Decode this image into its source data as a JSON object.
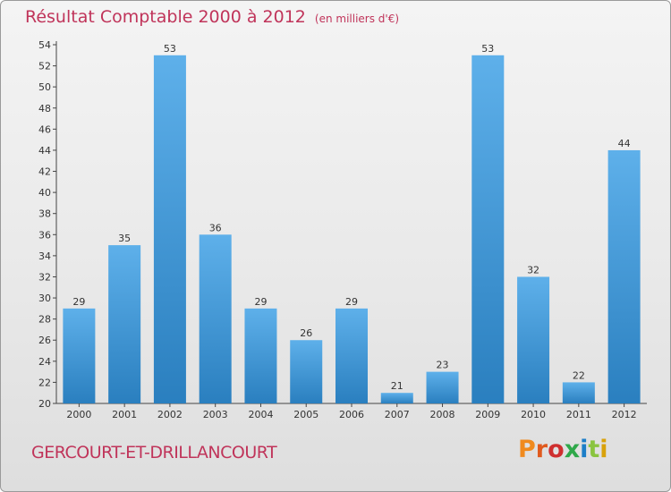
{
  "title": "Résultat Comptable 2000 à 2012",
  "unit": "(en milliers d'€)",
  "commune": "GERCOURT-ET-DRILLANCOURT",
  "logo_text": "Proxiti",
  "colors": {
    "title": "#c0345a",
    "bar_light": "#5eb0ea",
    "bar_dark": "#2a7fbf",
    "logo": [
      "#f08a1e",
      "#e05a1e",
      "#cf2f2f",
      "#2fa84a",
      "#1c7ec8",
      "#8ac43f",
      "#d9a20b"
    ]
  },
  "chart_data": {
    "type": "bar",
    "categories": [
      "2000",
      "2001",
      "2002",
      "2003",
      "2004",
      "2005",
      "2006",
      "2007",
      "2008",
      "2009",
      "2010",
      "2011",
      "2012"
    ],
    "values": [
      29,
      35,
      53,
      36,
      29,
      26,
      29,
      21,
      23,
      53,
      32,
      22,
      44
    ],
    "ylim": [
      20,
      54
    ],
    "yticks": [
      20,
      22,
      24,
      26,
      28,
      30,
      32,
      34,
      36,
      38,
      40,
      42,
      44,
      46,
      48,
      50,
      52,
      54
    ],
    "grid": false
  }
}
